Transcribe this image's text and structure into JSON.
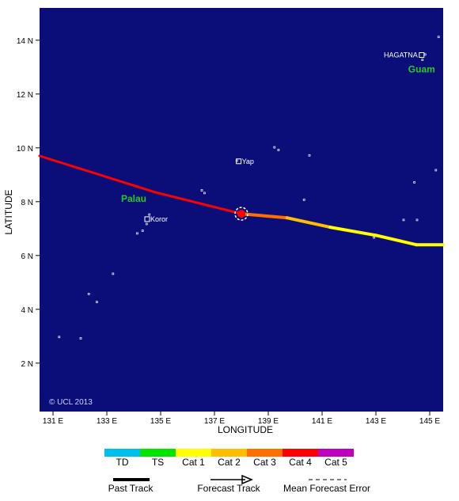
{
  "map": {
    "background_color": "#0b0e78",
    "lon_range": [
      130.5,
      145.5
    ],
    "lat_range": [
      0.2,
      15.2
    ],
    "lon_ticks": [
      {
        "value": 131,
        "label": "131 E"
      },
      {
        "value": 133,
        "label": "133 E"
      },
      {
        "value": 135,
        "label": "135 E"
      },
      {
        "value": 137,
        "label": "137 E"
      },
      {
        "value": 139,
        "label": "139 E"
      },
      {
        "value": 141,
        "label": "141 E"
      },
      {
        "value": 143,
        "label": "143 E"
      },
      {
        "value": 145,
        "label": "145 E"
      }
    ],
    "lat_ticks": [
      {
        "value": 2,
        "label": "2 N"
      },
      {
        "value": 4,
        "label": "4 N"
      },
      {
        "value": 6,
        "label": "6 N"
      },
      {
        "value": 8,
        "label": "8 N"
      },
      {
        "value": 10,
        "label": "10 N"
      },
      {
        "value": 12,
        "label": "12 N"
      },
      {
        "value": 14,
        "label": "14 N"
      }
    ],
    "xlabel": "LONGITUDE",
    "ylabel": "LATITUDE",
    "credit": "© UCL 2013",
    "current_position": {
      "lon": 138.0,
      "lat": 7.55
    },
    "track": [
      {
        "lon": 130.5,
        "lat": 9.7,
        "category": "Cat 5"
      },
      {
        "lon": 134.8,
        "lat": 8.35,
        "category": "Cat 4"
      },
      {
        "lon": 138.0,
        "lat": 7.55,
        "category": "Cat 4"
      },
      {
        "lon": 139.7,
        "lat": 7.4,
        "category": "Cat 3"
      },
      {
        "lon": 141.3,
        "lat": 7.05,
        "category": "Cat 2"
      },
      {
        "lon": 143.0,
        "lat": 6.75,
        "category": "Cat 1"
      },
      {
        "lon": 144.5,
        "lat": 6.4,
        "category": "Cat 1"
      },
      {
        "lon": 145.5,
        "lat": 6.4,
        "category": "Cat 1"
      }
    ],
    "places": [
      {
        "name": "Yap",
        "lon": 137.9,
        "lat": 9.5
      },
      {
        "name": "Koror",
        "lon": 134.5,
        "lat": 7.35
      },
      {
        "name": "HAGATNA",
        "lon": 144.7,
        "lat": 13.45
      }
    ],
    "regions": [
      {
        "name": "Palau",
        "lon": 134.0,
        "lat": 8.0
      },
      {
        "name": "Guam",
        "lon": 144.7,
        "lat": 12.8
      }
    ]
  },
  "legend": {
    "categories": [
      {
        "label": "TD",
        "color": "#00bfef"
      },
      {
        "label": "TS",
        "color": "#00e400"
      },
      {
        "label": "Cat 1",
        "color": "#ffff00"
      },
      {
        "label": "Cat 2",
        "color": "#ffbf00"
      },
      {
        "label": "Cat 3",
        "color": "#ff6f00"
      },
      {
        "label": "Cat 4",
        "color": "#ff0000"
      },
      {
        "label": "Cat 5",
        "color": "#c000c0"
      }
    ],
    "past_track_label": "Past Track",
    "forecast_track_label": "Forecast Track",
    "error_label": "Mean Forecast Error"
  }
}
